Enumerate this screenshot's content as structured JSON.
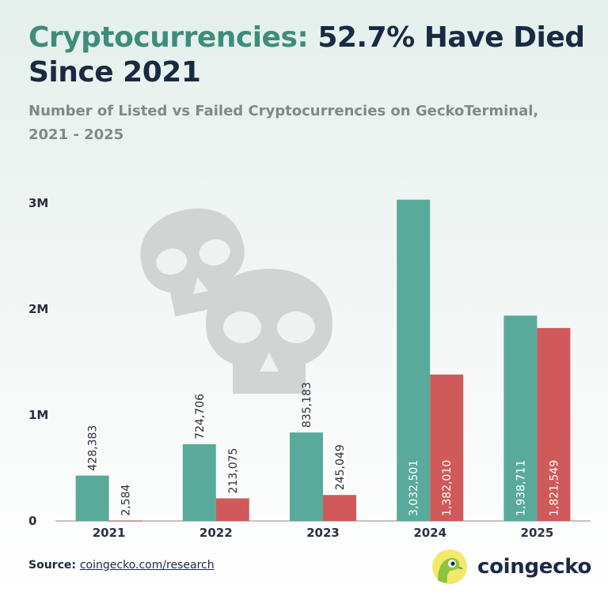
{
  "title": {
    "accent": "Cryptocurrencies:",
    "rest": " 52.7% Have Died Since 2021"
  },
  "subtitle": "Number of Listed vs Failed Cryptocurrencies on GeckoTerminal, 2021 - 2025",
  "colors": {
    "listed": "#5aaa9b",
    "failed": "#cf5a59",
    "axis_text": "#2a3040",
    "title_dark": "#1a2a44",
    "title_accent": "#3f8c7d",
    "skull": "#d0d4d2"
  },
  "chart_data": {
    "type": "bar",
    "categories": [
      "2021",
      "2022",
      "2023",
      "2024",
      "2025"
    ],
    "series": [
      {
        "values": [
          428383,
          724706,
          835183,
          3032501,
          1938711
        ],
        "labels": [
          "428,383",
          "724,706",
          "835,183",
          "3,032,501",
          "1,938,711"
        ]
      },
      {
        "values": [
          2584,
          213075,
          245049,
          1382010,
          1821549
        ],
        "labels": [
          "2,584",
          "213,075",
          "245,049",
          "1,382,010",
          "1,821,549"
        ]
      }
    ],
    "ylim": [
      0,
      3000000
    ],
    "yticks": [
      0,
      1000000,
      2000000,
      3000000
    ],
    "ytick_labels": [
      "0",
      "1M",
      "2M",
      "3M"
    ],
    "grid": false,
    "legend": "none"
  },
  "decoration": {
    "icon": "skull-icon"
  },
  "footer": {
    "source_label": "Source:",
    "source_link": "coingecko.com/research",
    "brand": "coingecko",
    "brand_icon": "gecko-logo-icon"
  }
}
